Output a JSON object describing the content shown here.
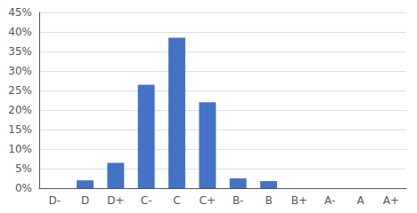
{
  "chart_data": {
    "type": "bar",
    "categories": [
      "D-",
      "D",
      "D+",
      "C-",
      "C",
      "C+",
      "B-",
      "B",
      "B+",
      "A-",
      "A",
      "A+"
    ],
    "values": [
      0,
      2,
      6.5,
      26.5,
      38.5,
      22,
      2.5,
      1.8,
      0,
      0,
      0,
      0
    ],
    "color": "#4472C4",
    "ylim": [
      0,
      45
    ],
    "yticks": [
      {
        "value": 0,
        "label": "0%"
      },
      {
        "value": 5,
        "label": "5%"
      },
      {
        "value": 10,
        "label": "10%"
      },
      {
        "value": 15,
        "label": "15%"
      },
      {
        "value": 20,
        "label": "20%"
      },
      {
        "value": 25,
        "label": "25%"
      },
      {
        "value": 30,
        "label": "30%"
      },
      {
        "value": 35,
        "label": "35%"
      },
      {
        "value": 40,
        "label": "40%"
      },
      {
        "value": 45,
        "label": "45%"
      }
    ],
    "grid": true
  }
}
